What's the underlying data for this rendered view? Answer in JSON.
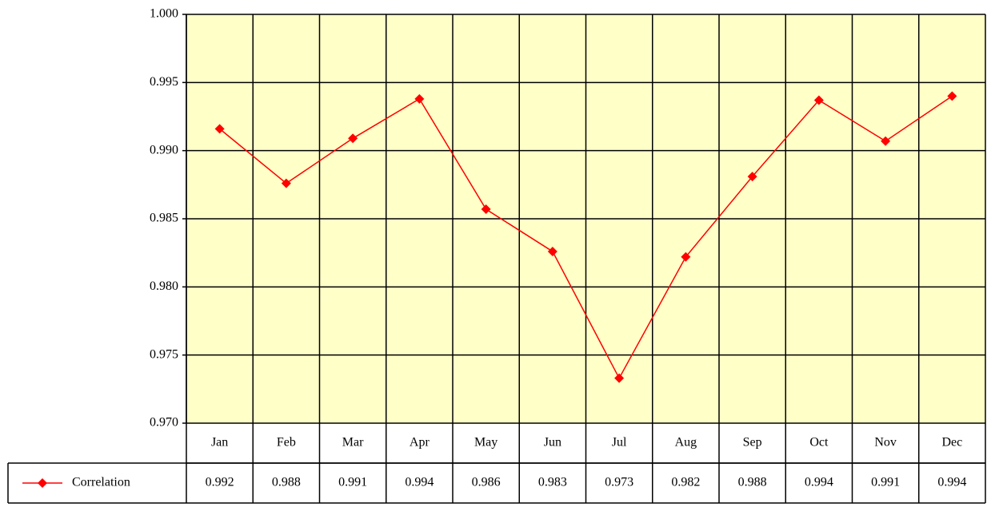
{
  "chart_data": {
    "type": "line",
    "categories": [
      "Jan",
      "Feb",
      "Mar",
      "Apr",
      "May",
      "Jun",
      "Jul",
      "Aug",
      "Sep",
      "Oct",
      "Nov",
      "Dec"
    ],
    "series": [
      {
        "name": "Correlation",
        "color": "#ff0000",
        "values": [
          0.9916,
          0.9876,
          0.9909,
          0.9938,
          0.9857,
          0.9826,
          0.9733,
          0.9822,
          0.9881,
          0.9937,
          0.9907,
          0.994
        ],
        "value_labels": [
          "0.992",
          "0.988",
          "0.991",
          "0.994",
          "0.986",
          "0.983",
          "0.973",
          "0.982",
          "0.988",
          "0.994",
          "0.991",
          "0.994"
        ]
      }
    ],
    "ylim": [
      0.97,
      1.0
    ],
    "yticks": [
      {
        "value": 0.97,
        "label": "0.970"
      },
      0.975,
      {
        "value": 0.98,
        "label": "0.980"
      },
      0.985,
      {
        "value": 0.99,
        "label": "0.990"
      },
      0.995,
      {
        "value": 1.0,
        "label": "1.000"
      }
    ],
    "grid": true
  }
}
